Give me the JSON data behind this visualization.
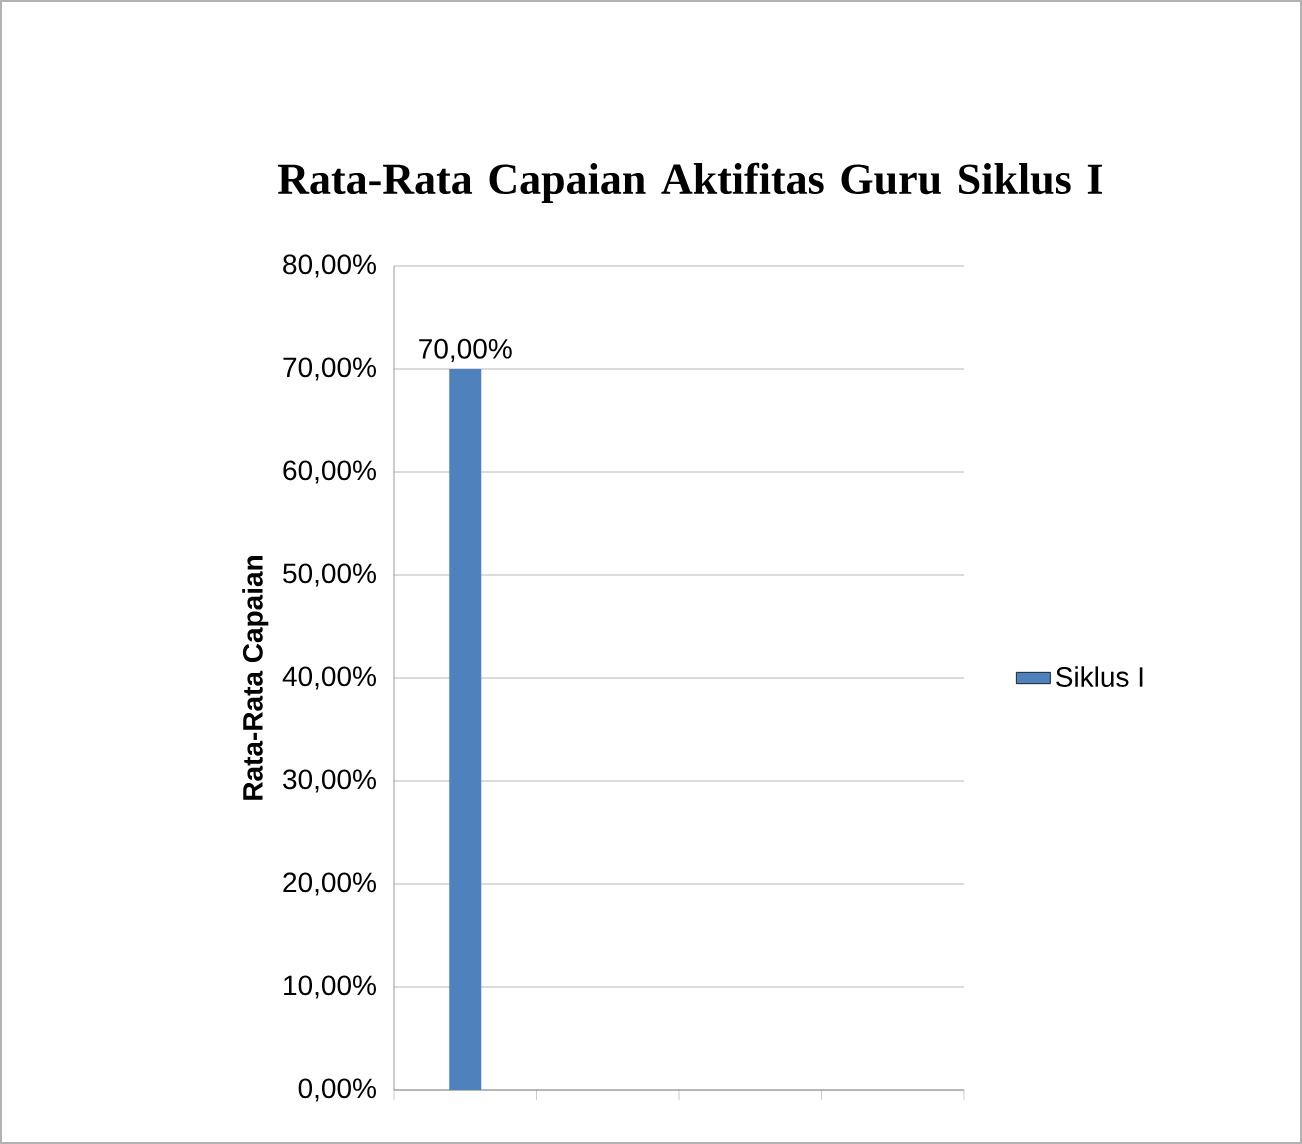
{
  "chart_data": {
    "type": "bar",
    "title": "Rata-Rata Capaian Aktifitas Guru Siklus I",
    "ylabel": "Rata-Rata Capaian",
    "categories": [
      null,
      null,
      null,
      null
    ],
    "series": [
      {
        "name": "Siklus I",
        "color": "#4f81bd",
        "values": [
          70,
          null,
          null,
          null
        ],
        "value_labels": [
          "70,00%",
          null,
          null,
          null
        ]
      }
    ],
    "ylim": [
      0,
      80
    ],
    "yticks": [
      {
        "value": 0,
        "label": "0,00%"
      },
      {
        "value": 10,
        "label": "10,00%"
      },
      {
        "value": 20,
        "label": "20,00%"
      },
      {
        "value": 30,
        "label": "30,00%"
      },
      {
        "value": 40,
        "label": "40,00%"
      },
      {
        "value": 50,
        "label": "50,00%"
      },
      {
        "value": 60,
        "label": "60,00%"
      },
      {
        "value": 70,
        "label": "70,00%"
      },
      {
        "value": 80,
        "label": "80,00%"
      }
    ],
    "grid": "y",
    "legend": "right"
  }
}
